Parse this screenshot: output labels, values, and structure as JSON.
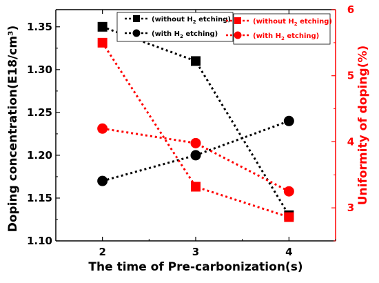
{
  "chart_data": {
    "type": "line",
    "x": [
      2,
      3,
      4
    ],
    "xlabel": "The time of Pre-carbonization(s)",
    "xlim": [
      1.5,
      4.5
    ],
    "xticks": [
      "2",
      "3",
      "4"
    ],
    "ylabel_left": "Doping concentration(E18/cm³)",
    "ylim_left": [
      1.1,
      1.37
    ],
    "yticks_left": [
      "1.10",
      "1.15",
      "1.20",
      "1.25",
      "1.30",
      "1.35"
    ],
    "ylabel_right": "Uniformity of doping(%)",
    "ylim_right": [
      2.5,
      6
    ],
    "yticks_right": [
      "3",
      "4",
      "5",
      "6"
    ],
    "grid": false,
    "series": [
      {
        "name": "(without H2 etching)",
        "axis": "left",
        "marker": "square",
        "color": "#000000",
        "values": [
          1.35,
          1.31,
          1.13
        ]
      },
      {
        "name": "(with H2 etching)",
        "axis": "left",
        "marker": "circle",
        "color": "#000000",
        "values": [
          1.17,
          1.2,
          1.24
        ]
      },
      {
        "name": "(without H2 etching)",
        "axis": "right",
        "marker": "square",
        "color": "#ff0000",
        "values": [
          5.5,
          3.32,
          2.86
        ]
      },
      {
        "name": "(with H2 etching)",
        "axis": "right",
        "marker": "circle",
        "color": "#ff0000",
        "values": [
          4.2,
          3.98,
          3.25
        ]
      }
    ],
    "legends": [
      {
        "placement": "top-center",
        "entries": [
          0,
          1
        ]
      },
      {
        "placement": "top-right",
        "entries": [
          2,
          3
        ]
      }
    ]
  }
}
